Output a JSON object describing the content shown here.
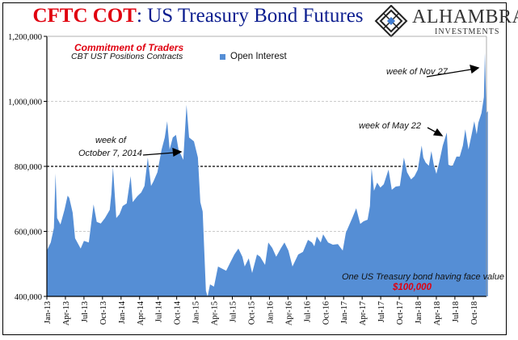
{
  "title": {
    "part1": "CFTC COT",
    "part2": ": US Treasury Bond Futures"
  },
  "logo": {
    "name": "ALHAMBRA",
    "sub": "INVESTMENTS"
  },
  "annotations": {
    "commitment": "Commitment of Traders",
    "positions": "CBT UST Positions Contracts",
    "oct_line1": "week of",
    "oct_line2": "October 7, 2014",
    "may": "week of May 22",
    "nov": "week of Nov 27",
    "face_value": "One US Treasury bond having face value",
    "face_amount": "$100,000"
  },
  "colors": {
    "area": "#558ed5",
    "accent_red": "#e0000f",
    "title_navy": "#0b1d8f"
  },
  "chart_data": {
    "type": "area",
    "title": "CFTC COT: US Treasury Bond Futures",
    "legend": {
      "position": "top-center",
      "entries": [
        "Open Interest"
      ]
    },
    "ylim": [
      400000,
      1200000
    ],
    "yticks": [
      "1,200,000",
      "1,000,000",
      "800,000",
      "600,000",
      "400,000"
    ],
    "ytick_values": [
      1200000,
      1000000,
      800000,
      600000,
      400000
    ],
    "grid": {
      "horizontal": true,
      "reference_line": 800000
    },
    "xticks": [
      "Jan-13",
      "Apr-13",
      "Jul-13",
      "Oct-13",
      "Jan-14",
      "Apr-14",
      "Jul-14",
      "Oct-14",
      "Jan-15",
      "Apr-15",
      "Jul-15",
      "Oct-15",
      "Jan-16",
      "Apr-16",
      "Jul-16",
      "Oct-16",
      "Jan-17",
      "Apr-17",
      "Jul-17",
      "Oct-17",
      "Jan-18",
      "Apr-18",
      "Jul-18",
      "Oct-18"
    ],
    "series": [
      {
        "name": "Open Interest",
        "x": [
          "2013-01-01",
          "2013-01-20",
          "2013-02-05",
          "2013-02-13",
          "2013-02-21",
          "2013-03-07",
          "2013-03-27",
          "2013-04-12",
          "2013-04-20",
          "2013-05-06",
          "2013-05-18",
          "2013-06-15",
          "2013-07-01",
          "2013-07-25",
          "2013-08-18",
          "2013-09-03",
          "2013-09-23",
          "2013-10-13",
          "2013-11-06",
          "2013-11-14",
          "2013-11-22",
          "2013-12-08",
          "2013-12-24",
          "2014-01-09",
          "2014-01-29",
          "2014-02-18",
          "2014-02-28",
          "2014-03-20",
          "2014-04-09",
          "2014-04-25",
          "2014-05-11",
          "2014-05-27",
          "2014-06-08",
          "2014-06-28",
          "2014-07-18",
          "2014-08-03",
          "2014-08-15",
          "2014-08-27",
          "2014-09-12",
          "2014-09-28",
          "2014-10-10",
          "2014-11-03",
          "2014-11-19",
          "2014-12-01",
          "2014-12-25",
          "2015-01-14",
          "2015-01-26",
          "2015-02-07",
          "2015-02-23",
          "2015-03-01",
          "2015-03-13",
          "2015-04-02",
          "2015-04-22",
          "2015-05-16",
          "2015-06-01",
          "2015-06-21",
          "2015-07-11",
          "2015-07-31",
          "2015-08-20",
          "2015-09-01",
          "2015-09-21",
          "2015-10-07",
          "2015-10-31",
          "2015-11-16",
          "2015-12-10",
          "2015-12-26",
          "2016-01-15",
          "2016-02-04",
          "2016-02-28",
          "2016-03-14",
          "2016-04-03",
          "2016-04-23",
          "2016-05-21",
          "2016-06-14",
          "2016-07-08",
          "2016-07-28",
          "2016-08-09",
          "2016-08-21",
          "2016-09-10",
          "2016-09-22",
          "2016-10-16",
          "2016-11-09",
          "2016-12-03",
          "2016-12-27",
          "2017-01-12",
          "2017-02-13",
          "2017-03-02",
          "2017-03-22",
          "2017-04-08",
          "2017-04-28",
          "2017-05-09",
          "2017-05-17",
          "2017-05-29",
          "2017-06-14",
          "2017-06-30",
          "2017-07-16",
          "2017-08-09",
          "2017-08-25",
          "2017-09-14",
          "2017-10-04",
          "2017-10-12",
          "2017-10-24",
          "2017-11-09",
          "2017-11-29",
          "2017-12-15",
          "2018-01-01",
          "2018-01-20",
          "2018-01-28",
          "2018-02-09",
          "2018-02-25",
          "2018-03-07",
          "2018-03-19",
          "2018-04-01",
          "2018-04-16",
          "2018-05-02",
          "2018-05-22",
          "2018-05-30",
          "2018-06-19",
          "2018-07-09",
          "2018-07-25",
          "2018-08-10",
          "2018-08-22",
          "2018-09-07",
          "2018-09-23",
          "2018-10-05",
          "2018-10-17",
          "2018-10-25",
          "2018-11-10",
          "2018-11-22",
          "2018-11-27",
          "2018-12-04",
          "2018-12-11"
        ],
        "values": [
          541000,
          566000,
          611000,
          778000,
          641000,
          621000,
          666000,
          710000,
          703000,
          658000,
          579000,
          547000,
          571000,
          566000,
          683000,
          629000,
          624000,
          641000,
          666000,
          715000,
          797000,
          641000,
          653000,
          678000,
          686000,
          770000,
          690000,
          708000,
          720000,
          740000,
          827000,
          740000,
          753000,
          782000,
          852000,
          889000,
          939000,
          852000,
          889000,
          897000,
          852000,
          820000,
          989000,
          889000,
          877000,
          827000,
          690000,
          661000,
          417000,
          400000,
          437000,
          430000,
          492000,
          484000,
          479000,
          504000,
          529000,
          547000,
          522000,
          492000,
          517000,
          472000,
          529000,
          522000,
          497000,
          566000,
          549000,
          522000,
          549000,
          566000,
          541000,
          492000,
          529000,
          537000,
          574000,
          566000,
          554000,
          584000,
          566000,
          591000,
          566000,
          559000,
          561000,
          541000,
          596000,
          641000,
          671000,
          623000,
          631000,
          636000,
          678000,
          795000,
          725000,
          750000,
          735000,
          745000,
          790000,
          728000,
          738000,
          740000,
          775000,
          827000,
          782000,
          760000,
          770000,
          790000,
          864000,
          827000,
          812000,
          802000,
          847000,
          805000,
          777000,
          815000,
          864000,
          904000,
          805000,
          800000,
          830000,
          830000,
          864000,
          914000,
          852000,
          899000,
          939000,
          899000,
          934000,
          964000,
          1013000,
          1150000,
          964000,
          970000
        ]
      }
    ]
  }
}
